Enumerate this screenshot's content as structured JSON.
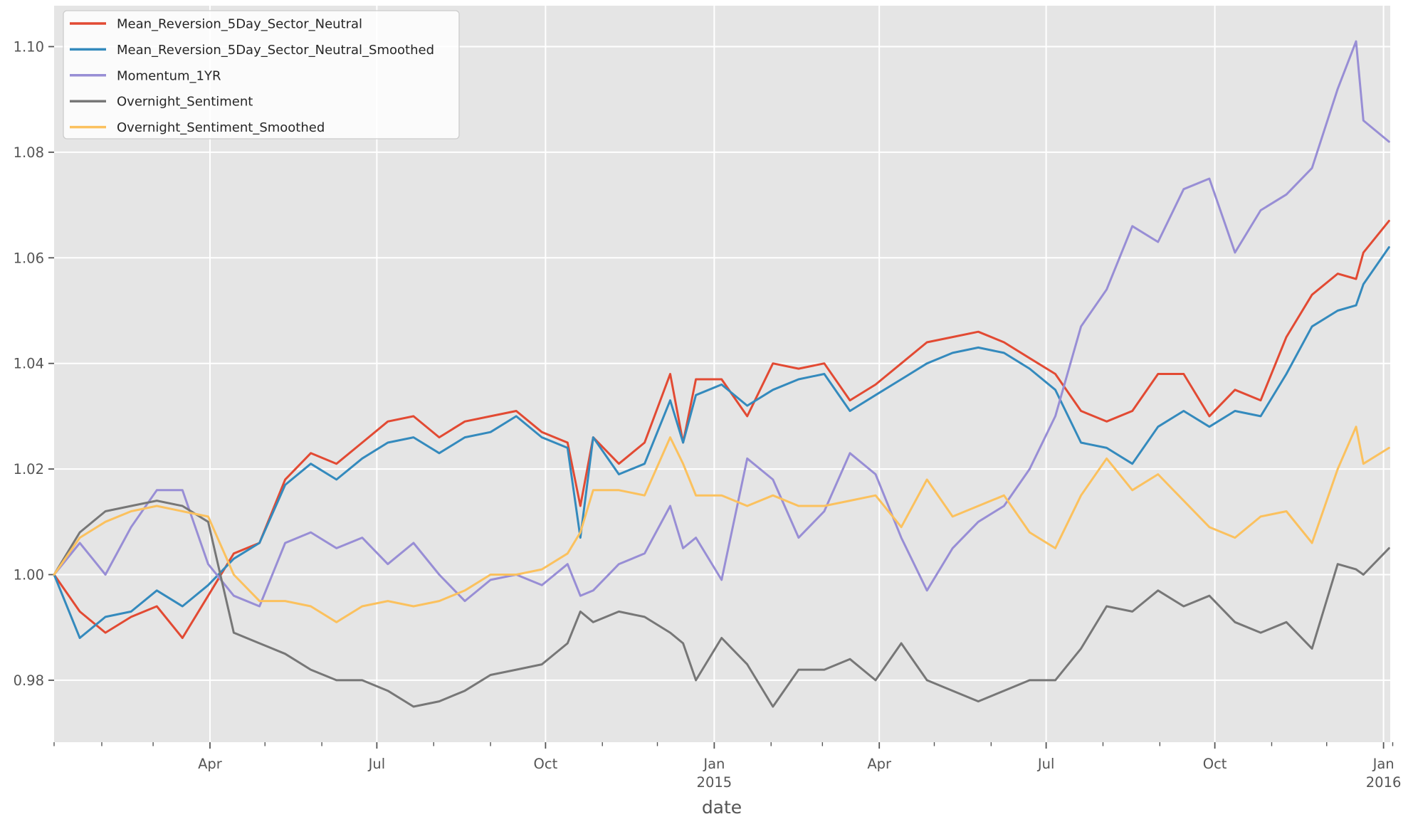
{
  "figure": {
    "background_color": "#FFFFFF",
    "plot_background_color": "#E5E5E5",
    "grid_color": "#FFFFFF",
    "tick_color": "#555555",
    "text_color": "#555555",
    "legend_background_color": "#F5F5F5",
    "legend_border_color": "#CCCCCC",
    "legend_text_color": "#262626"
  },
  "chart_data": {
    "type": "line",
    "title": "",
    "xlabel": "date",
    "ylabel": "",
    "grid": true,
    "legend_position": "upper left",
    "ylim": [
      0.9683,
      1.1077
    ],
    "yticks": [
      0.98,
      1.0,
      1.02,
      1.04,
      1.06,
      1.08,
      1.1
    ],
    "ytick_labels": [
      "0.98",
      "1.00",
      "1.02",
      "1.04",
      "1.06",
      "1.08",
      "1.10"
    ],
    "xticks_major": [
      {
        "label": "Apr",
        "day": 85
      },
      {
        "label": "Jul",
        "day": 176
      },
      {
        "label": "Oct",
        "day": 268
      },
      {
        "label": "Jan",
        "year": "2015",
        "day": 360
      },
      {
        "label": "Apr",
        "day": 450
      },
      {
        "label": "Jul",
        "day": 541
      },
      {
        "label": "Oct",
        "day": 633
      },
      {
        "label": "Jan",
        "year": "2016",
        "day": 725
      }
    ],
    "xticks_minor_days": [
      0,
      26,
      54,
      115,
      146,
      207,
      238,
      299,
      329,
      391,
      419,
      480,
      511,
      572,
      603,
      664,
      694,
      730
    ],
    "x_dates": [
      "2014-01-06",
      "2014-01-20",
      "2014-02-03",
      "2014-02-17",
      "2014-03-03",
      "2014-03-17",
      "2014-03-31",
      "2014-04-14",
      "2014-04-28",
      "2014-05-12",
      "2014-05-26",
      "2014-06-09",
      "2014-06-23",
      "2014-07-07",
      "2014-07-21",
      "2014-08-04",
      "2014-08-18",
      "2014-09-01",
      "2014-09-15",
      "2014-09-29",
      "2014-10-13",
      "2014-10-20",
      "2014-10-27",
      "2014-11-10",
      "2014-11-24",
      "2014-12-08",
      "2014-12-15",
      "2014-12-22",
      "2015-01-05",
      "2015-01-19",
      "2015-02-02",
      "2015-02-16",
      "2015-03-02",
      "2015-03-16",
      "2015-03-30",
      "2015-04-13",
      "2015-04-27",
      "2015-05-11",
      "2015-05-25",
      "2015-06-08",
      "2015-06-22",
      "2015-07-06",
      "2015-07-20",
      "2015-08-03",
      "2015-08-17",
      "2015-08-31",
      "2015-09-14",
      "2015-09-28",
      "2015-10-12",
      "2015-10-26",
      "2015-11-09",
      "2015-11-23",
      "2015-12-07",
      "2015-12-17",
      "2015-12-21",
      "2016-01-04"
    ],
    "x_days": [
      0,
      14,
      28,
      42,
      56,
      70,
      84,
      98,
      112,
      126,
      140,
      154,
      168,
      182,
      196,
      210,
      224,
      238,
      252,
      266,
      280,
      287,
      294,
      308,
      322,
      336,
      343,
      350,
      364,
      378,
      392,
      406,
      420,
      434,
      448,
      462,
      476,
      490,
      504,
      518,
      532,
      546,
      560,
      574,
      588,
      602,
      616,
      630,
      644,
      658,
      672,
      686,
      700,
      710,
      714,
      728
    ],
    "series": [
      {
        "name": "Mean_Reversion_5Day_Sector_Neutral",
        "color": "#E24A33",
        "values": [
          1.0,
          0.993,
          0.989,
          0.992,
          0.994,
          0.988,
          0.996,
          1.004,
          1.006,
          1.018,
          1.023,
          1.021,
          1.025,
          1.029,
          1.03,
          1.026,
          1.029,
          1.03,
          1.031,
          1.027,
          1.025,
          1.013,
          1.026,
          1.021,
          1.025,
          1.038,
          1.025,
          1.037,
          1.037,
          1.03,
          1.04,
          1.039,
          1.04,
          1.033,
          1.036,
          1.04,
          1.044,
          1.045,
          1.046,
          1.044,
          1.041,
          1.038,
          1.031,
          1.029,
          1.031,
          1.038,
          1.038,
          1.03,
          1.035,
          1.033,
          1.045,
          1.053,
          1.057,
          1.056,
          1.061,
          1.067
        ]
      },
      {
        "name": "Mean_Reversion_5Day_Sector_Neutral_Smoothed",
        "color": "#348ABD",
        "values": [
          1.0,
          0.988,
          0.992,
          0.993,
          0.997,
          0.994,
          0.998,
          1.003,
          1.006,
          1.017,
          1.021,
          1.018,
          1.022,
          1.025,
          1.026,
          1.023,
          1.026,
          1.027,
          1.03,
          1.026,
          1.024,
          1.007,
          1.026,
          1.019,
          1.021,
          1.033,
          1.025,
          1.034,
          1.036,
          1.032,
          1.035,
          1.037,
          1.038,
          1.031,
          1.034,
          1.037,
          1.04,
          1.042,
          1.043,
          1.042,
          1.039,
          1.035,
          1.025,
          1.024,
          1.021,
          1.028,
          1.031,
          1.028,
          1.031,
          1.03,
          1.038,
          1.047,
          1.05,
          1.051,
          1.055,
          1.062
        ]
      },
      {
        "name": "Momentum_1YR",
        "color": "#988ED5",
        "values": [
          1.0,
          1.006,
          1.0,
          1.009,
          1.016,
          1.016,
          1.002,
          0.996,
          0.994,
          1.006,
          1.008,
          1.005,
          1.007,
          1.002,
          1.006,
          1.0,
          0.995,
          0.999,
          1.0,
          0.998,
          1.002,
          0.996,
          0.997,
          1.002,
          1.004,
          1.013,
          1.005,
          1.007,
          0.999,
          1.022,
          1.018,
          1.007,
          1.012,
          1.023,
          1.019,
          1.007,
          0.997,
          1.005,
          1.01,
          1.013,
          1.02,
          1.03,
          1.047,
          1.054,
          1.066,
          1.063,
          1.073,
          1.075,
          1.061,
          1.069,
          1.072,
          1.077,
          1.092,
          1.101,
          1.086,
          1.082
        ]
      },
      {
        "name": "Overnight_Sentiment",
        "color": "#777777",
        "values": [
          1.0,
          1.008,
          1.012,
          1.013,
          1.014,
          1.013,
          1.01,
          0.989,
          0.987,
          0.985,
          0.982,
          0.98,
          0.98,
          0.978,
          0.975,
          0.976,
          0.978,
          0.981,
          0.982,
          0.983,
          0.987,
          0.993,
          0.991,
          0.993,
          0.992,
          0.989,
          0.987,
          0.98,
          0.988,
          0.983,
          0.975,
          0.982,
          0.982,
          0.984,
          0.98,
          0.987,
          0.98,
          0.978,
          0.976,
          0.978,
          0.98,
          0.98,
          0.986,
          0.994,
          0.993,
          0.997,
          0.994,
          0.996,
          0.991,
          0.989,
          0.991,
          0.986,
          1.002,
          1.001,
          1.0,
          1.005
        ]
      },
      {
        "name": "Overnight_Sentiment_Smoothed",
        "color": "#FBC15E",
        "values": [
          1.0,
          1.007,
          1.01,
          1.012,
          1.013,
          1.012,
          1.011,
          1.0,
          0.995,
          0.995,
          0.994,
          0.991,
          0.994,
          0.995,
          0.994,
          0.995,
          0.997,
          1.0,
          1.0,
          1.001,
          1.004,
          1.008,
          1.016,
          1.016,
          1.015,
          1.026,
          1.021,
          1.015,
          1.015,
          1.013,
          1.015,
          1.013,
          1.013,
          1.014,
          1.015,
          1.009,
          1.018,
          1.011,
          1.013,
          1.015,
          1.008,
          1.005,
          1.015,
          1.022,
          1.016,
          1.019,
          1.014,
          1.009,
          1.007,
          1.011,
          1.012,
          1.006,
          1.02,
          1.028,
          1.021,
          1.024
        ]
      }
    ]
  }
}
